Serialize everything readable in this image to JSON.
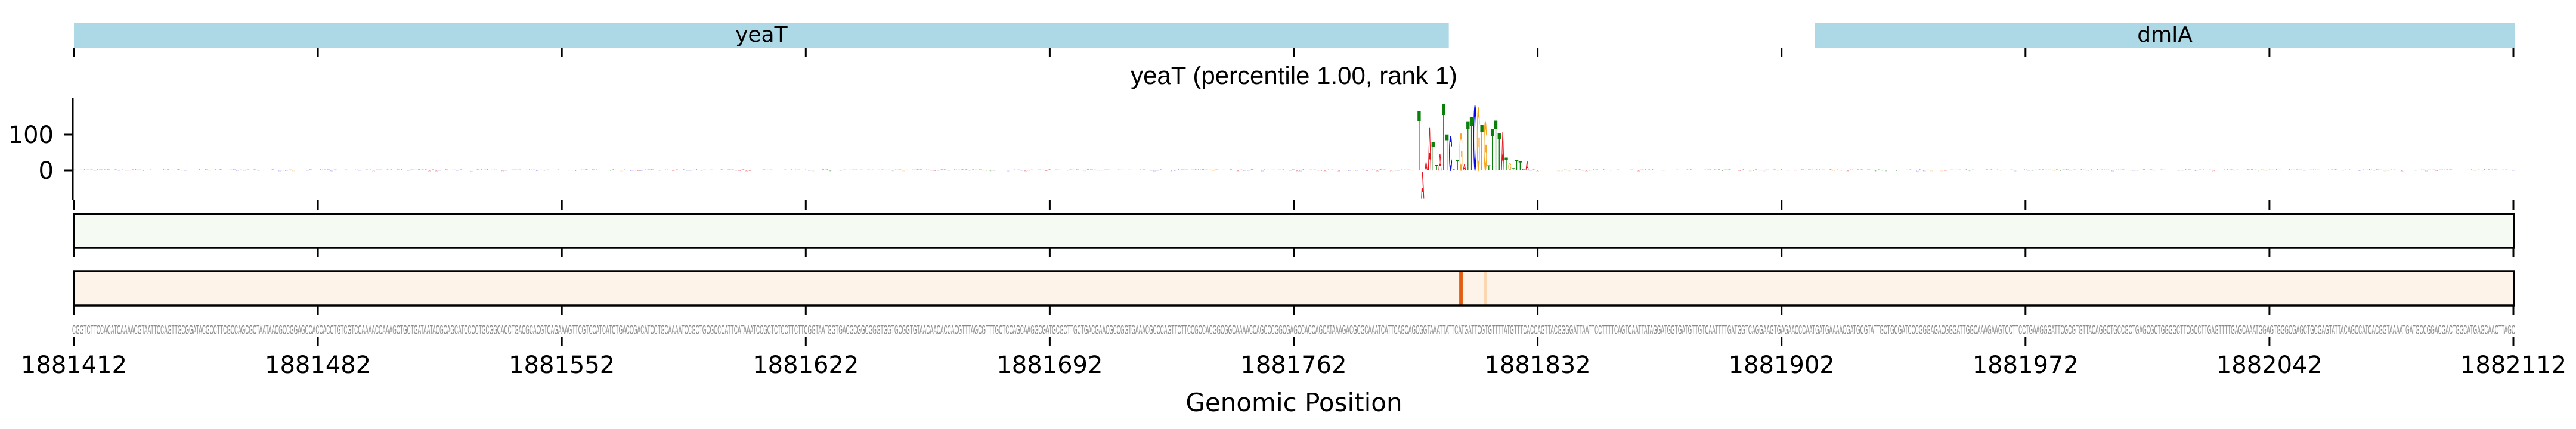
{
  "genes": [
    {
      "name": "yeaT",
      "start": 1881412,
      "end": 1881806,
      "color": "#add8e6"
    },
    {
      "name": "dmlA",
      "start": 1881912,
      "end": 1882112,
      "color": "#add8e6"
    }
  ],
  "chart_data": {
    "type": "sequence-logo",
    "title": "yeaT (percentile 1.00, rank 1)",
    "xlabel": "Genomic Position",
    "ylabel": "",
    "xlim": [
      1881412,
      1882112
    ],
    "ylim": [
      -82,
      202
    ],
    "x_ticks": [
      "1881412",
      "1881482",
      "1881552",
      "1881622",
      "1881692",
      "1881762",
      "1881832",
      "1881902",
      "1881972",
      "1882042",
      "1882112"
    ],
    "x_tick_values": [
      1881412,
      1881482,
      1881552,
      1881622,
      1881692,
      1881762,
      1881832,
      1881902,
      1881972,
      1882042,
      1882112
    ],
    "y_ticks": [
      "100",
      "0"
    ],
    "y_tick_values": [
      100,
      0
    ],
    "letter_colors": {
      "A": "#e8101a",
      "C": "#0a0ae0",
      "G": "#f5a623",
      "T": "#0a800a"
    },
    "background_amplitude": 4,
    "peak_letters": [
      {
        "pos": 1881798,
        "base": "T",
        "value": 175
      },
      {
        "pos": 1881799,
        "base": "A",
        "value": -79
      },
      {
        "pos": 1881800,
        "base": "A",
        "value": 24
      },
      {
        "pos": 1881801,
        "base": "A",
        "value": 127
      },
      {
        "pos": 1881802,
        "base": "T",
        "value": 85
      },
      {
        "pos": 1881803,
        "base": "T",
        "value": 16
      },
      {
        "pos": 1881804,
        "base": "A",
        "value": 49
      },
      {
        "pos": 1881805,
        "base": "T",
        "value": 196
      },
      {
        "pos": 1881806,
        "base": "T",
        "value": 106
      },
      {
        "pos": 1881807,
        "base": "C",
        "value": 100
      },
      {
        "pos": 1881808,
        "base": "A",
        "value": 3
      },
      {
        "pos": 1881809,
        "base": "T",
        "value": 31
      },
      {
        "pos": 1881810,
        "base": "G",
        "value": 109
      },
      {
        "pos": 1881811,
        "base": "A",
        "value": 18
      },
      {
        "pos": 1881812,
        "base": "T",
        "value": 146
      },
      {
        "pos": 1881813,
        "base": "T",
        "value": 158
      },
      {
        "pos": 1881814,
        "base": "C",
        "value": 192
      },
      {
        "pos": 1881815,
        "base": "G",
        "value": 185
      },
      {
        "pos": 1881816,
        "base": "T",
        "value": 135
      },
      {
        "pos": 1881817,
        "base": "G",
        "value": 144
      },
      {
        "pos": 1881818,
        "base": "T",
        "value": 14
      },
      {
        "pos": 1881819,
        "base": "T",
        "value": 122
      },
      {
        "pos": 1881820,
        "base": "T",
        "value": 148
      },
      {
        "pos": 1881821,
        "base": "T",
        "value": 111
      },
      {
        "pos": 1881822,
        "base": "A",
        "value": 113
      },
      {
        "pos": 1881823,
        "base": "T",
        "value": 38
      },
      {
        "pos": 1881824,
        "base": "G",
        "value": 21
      },
      {
        "pos": 1881825,
        "base": "T",
        "value": 7
      },
      {
        "pos": 1881826,
        "base": "T",
        "value": 31
      },
      {
        "pos": 1881827,
        "base": "T",
        "value": 28
      },
      {
        "pos": 1881828,
        "base": "C",
        "value": 3
      },
      {
        "pos": 1881829,
        "base": "A",
        "value": 27
      }
    ],
    "tracks": [
      {
        "name": "track-green",
        "base_color": "#f5faf2",
        "highlights": []
      },
      {
        "name": "track-orange",
        "base_color": "#fdf3e9",
        "highlights": [
          {
            "pos": 1881810,
            "value": 1.0,
            "color": "#e35d10"
          },
          {
            "pos": 1881817,
            "value": 0.2,
            "color": "#fbd6b2"
          }
        ]
      }
    ]
  },
  "sequence": "CGGTCTTCCACATCAAAACGTAATTCCAGTTGCGGATACGCCTTCGCCAGCGCTAATAACGCCGGAGCCACCACCTGTCGTCCAAAACCAAAGCTGCTGATAATACGCAGCATCCCCTGCGGCACCTGACGCACGTCAGAAAGTTCGTCCATCATCTGACCGACATCCTGCAAAATCCGCTGCGCCCATTCATAAATCCGCTCTCCTTCTTCGGTAATGGTGACGCGGCGGGTGGTGCGGTGTAACAACACCACGTTTAGCGTTTGCTCCAGCAAGGCGATGCGCTTGCTGACGAACGCCGGTGAAACGCCCAGTTCTTCCGCCACGGCGGCAAAACCAGCCCGGCGAGCCACCAGCATAAAGACGCGCAAATCATTCAGCAGCGGTAAATTATTCATGATTCGTGTTTTATGTTTCACCAGTTACGGGGATTAATTCCTTTTCAGTCAATTATAGGATGGTGATGTTGTCAATTTTGATGGTCAGGAAGTGAGAACCCAATGATGAAAACGATGCGTATTGCTGCGATCCCGGGAGACGGGATTGGCAAAGAAGTCCTTCCTGAAGGGATTCGCGTGTTACAGGCTGCCGCTGAGCGCTGGGGCTTCGCCTTGAGTTTTGAGCAAATGGAGTGGGCGAGCTGCGAGTATTACAGCCATCACGGTAAAATGATGCCGGACGACTGGCATGAGCAACTTAGC"
}
